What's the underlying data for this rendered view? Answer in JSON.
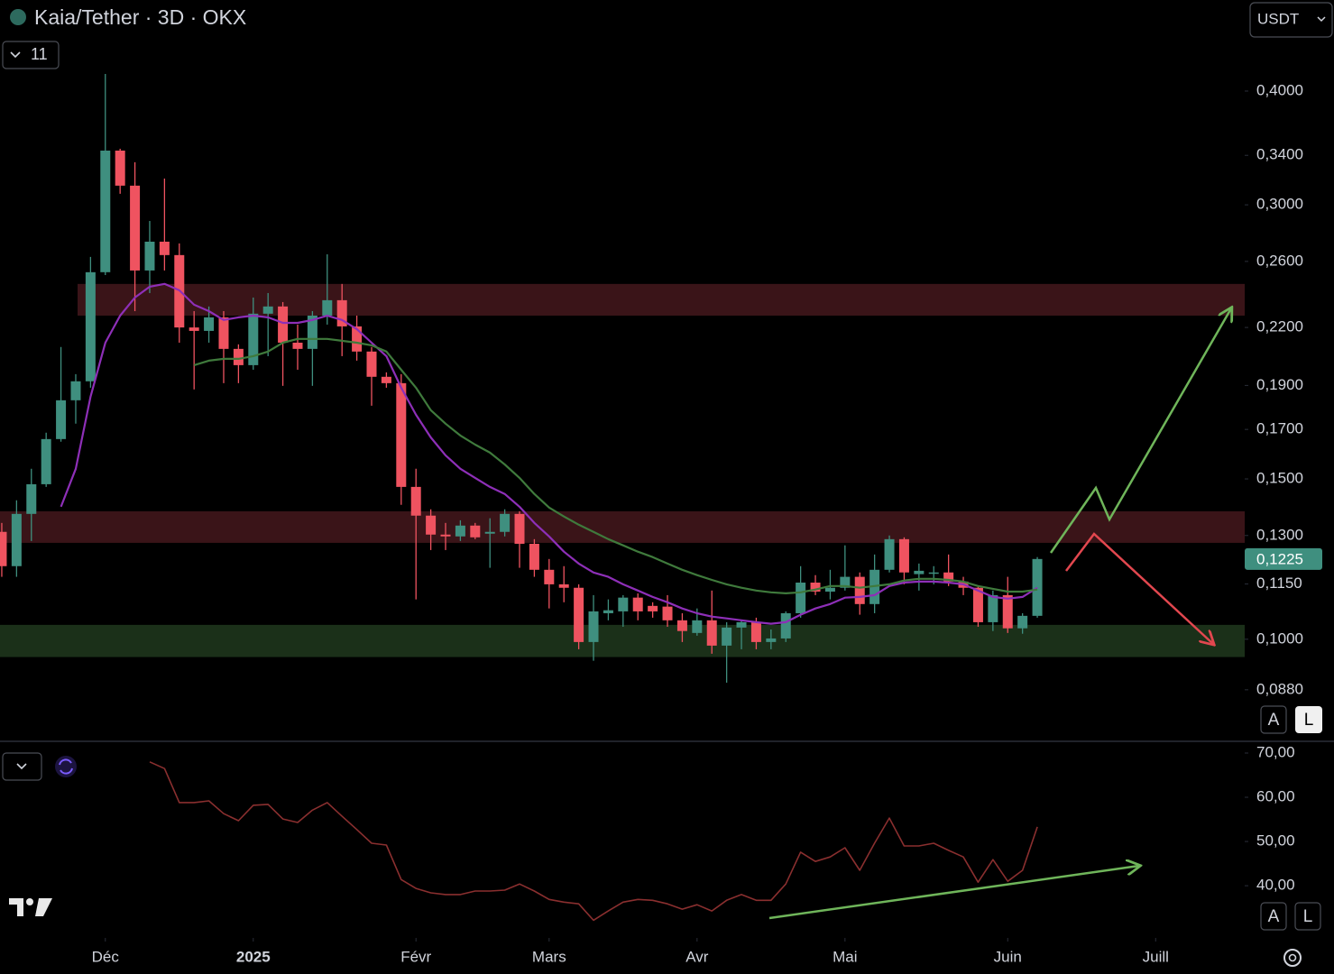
{
  "toolbar": {
    "currency": "USDT",
    "indicators": "11",
    "scale_buttons": [
      "A",
      "L"
    ]
  },
  "chart_data": [
    {
      "type": "candlestick",
      "title": "Kaia/Tether · 3D · OKX",
      "log_scale": true,
      "grid": false,
      "up_color": "#3f8f7f",
      "down_color": "#ef5360",
      "xlim": [
        -0.12,
        84.02
      ],
      "ylim": [
        0.0776,
        0.5036
      ],
      "yticks": [
        {
          "value": 0.4,
          "label": "0,4000"
        },
        {
          "value": 0.34,
          "label": "0,3400"
        },
        {
          "value": 0.3,
          "label": "0,3000"
        },
        {
          "value": 0.26,
          "label": "0,2600"
        },
        {
          "value": 0.22,
          "label": "0,2200"
        },
        {
          "value": 0.19,
          "label": "0,1900"
        },
        {
          "value": 0.17,
          "label": "0,1700"
        },
        {
          "value": 0.15,
          "label": "0,1500"
        },
        {
          "value": 0.13,
          "label": "0,1300"
        },
        {
          "value": 0.115,
          "label": "0,1150"
        },
        {
          "value": 0.1,
          "label": "0,1000"
        },
        {
          "value": 0.088,
          "label": "0,0880"
        }
      ],
      "last_price": {
        "value": 0.1225,
        "label": "0,1225"
      },
      "open": [
        0.1312,
        0.1203,
        0.1373,
        0.148,
        0.1659,
        0.183,
        0.192,
        0.253,
        0.3441,
        0.3149,
        0.2541,
        0.2733,
        0.2642,
        0.22,
        0.2181,
        0.2257,
        0.2084,
        0.2,
        0.2278,
        0.232,
        0.2117,
        0.2084,
        0.2267,
        0.2357,
        0.2206,
        0.207,
        0.1942,
        0.1911,
        0.147,
        0.1367,
        0.1303,
        0.1297,
        0.1333,
        0.1306,
        0.1312,
        0.1373,
        0.1273,
        0.1192,
        0.1149,
        0.1139,
        0.0993,
        0.1068,
        0.1073,
        0.1111,
        0.1088,
        0.1086,
        0.1049,
        0.1016,
        0.1049,
        0.0984,
        0.103,
        0.1044,
        0.0993,
        0.1002,
        0.1068,
        0.1154,
        0.1128,
        0.1139,
        0.1171,
        0.1093,
        0.1192,
        0.1288,
        0.1179,
        0.1181,
        0.1184,
        0.1157,
        0.1139,
        0.1044,
        0.1118,
        0.1028,
        0.1061
      ],
      "high": [
        0.1342,
        0.1421,
        0.1539,
        0.1686,
        0.2094,
        0.1955,
        0.263,
        0.4177,
        0.3457,
        0.3341,
        0.288,
        0.3206,
        0.2721,
        0.2293,
        0.232,
        0.2293,
        0.2108,
        0.2373,
        0.24,
        0.2346,
        0.2216,
        0.2293,
        0.2647,
        0.2456,
        0.2267,
        0.2094,
        0.1964,
        0.1955,
        0.1539,
        0.1389,
        0.1342,
        0.1351,
        0.1342,
        0.1358,
        0.1389,
        0.1382,
        0.1288,
        0.1225,
        0.1203,
        0.1149,
        0.1118,
        0.1106,
        0.1118,
        0.1123,
        0.1098,
        0.1118,
        0.1068,
        0.1081,
        0.1131,
        0.1044,
        0.1049,
        0.1056,
        0.1025,
        0.1073,
        0.1203,
        0.1176,
        0.1192,
        0.1268,
        0.1184,
        0.1239,
        0.13,
        0.1294,
        0.1211,
        0.1203,
        0.1239,
        0.1171,
        0.1144,
        0.1131,
        0.1171,
        0.1068,
        0.1231
      ],
      "low": [
        0.1171,
        0.1171,
        0.1282,
        0.147,
        0.1648,
        0.1725,
        0.1889,
        0.2512,
        0.3085,
        0.2293,
        0.24,
        0.2541,
        0.2117,
        0.1881,
        0.2117,
        0.1911,
        0.1911,
        0.1977,
        0.2046,
        0.1898,
        0.1977,
        0.1898,
        0.2216,
        0.2046,
        0.2023,
        0.1805,
        0.1889,
        0.1405,
        0.1106,
        0.1253,
        0.1253,
        0.1282,
        0.1288,
        0.1198,
        0.1297,
        0.1198,
        0.1171,
        0.1081,
        0.1098,
        0.0975,
        0.0947,
        0.1049,
        0.1032,
        0.1049,
        0.1056,
        0.1032,
        0.0993,
        0.1009,
        0.0964,
        0.0896,
        0.0975,
        0.0975,
        0.0975,
        0.0993,
        0.1056,
        0.1118,
        0.1106,
        0.1131,
        0.1064,
        0.1068,
        0.1184,
        0.1149,
        0.1131,
        0.1149,
        0.1144,
        0.1118,
        0.1032,
        0.1021,
        0.1016,
        0.1014,
        0.1056
      ],
      "close": [
        0.1203,
        0.1373,
        0.148,
        0.1659,
        0.183,
        0.192,
        0.253,
        0.3441,
        0.3149,
        0.2541,
        0.2733,
        0.2642,
        0.22,
        0.2181,
        0.2257,
        0.2084,
        0.2,
        0.2278,
        0.232,
        0.2117,
        0.2084,
        0.2267,
        0.2357,
        0.2206,
        0.207,
        0.1942,
        0.1911,
        0.147,
        0.1367,
        0.1303,
        0.1297,
        0.1333,
        0.1294,
        0.1312,
        0.1373,
        0.1273,
        0.1192,
        0.1149,
        0.1139,
        0.0993,
        0.1073,
        0.1076,
        0.1111,
        0.1073,
        0.1073,
        0.1049,
        0.1021,
        0.1049,
        0.0984,
        0.103,
        0.1044,
        0.0993,
        0.1002,
        0.1068,
        0.1154,
        0.1128,
        0.1139,
        0.1171,
        0.1093,
        0.1192,
        0.1288,
        0.1184,
        0.1189,
        0.1184,
        0.1157,
        0.1139,
        0.1044,
        0.1118,
        0.1028,
        0.1061,
        0.1225
      ],
      "lines": [
        {
          "color": "#8e2fb8",
          "values": [
            null,
            null,
            null,
            null,
            0.1398,
            0.1539,
            0.1847,
            0.2117,
            0.2267,
            0.2373,
            0.2439,
            0.2456,
            0.2417,
            0.233,
            0.2293,
            0.2242,
            0.2257,
            0.2267,
            0.2257,
            0.2226,
            0.2226,
            0.2242,
            0.2267,
            0.2242,
            0.2191,
            0.2117,
            0.2046,
            0.1889,
            0.1764,
            0.1666,
            0.1592,
            0.1539,
            0.1504,
            0.147,
            0.1444,
            0.1398,
            0.1342,
            0.1297,
            0.1248,
            0.1211,
            0.1184,
            0.1171,
            0.1149,
            0.1131,
            0.1113,
            0.1098,
            0.1081,
            0.1068,
            0.1059,
            0.1054,
            0.1049,
            0.1044,
            0.104,
            0.1044,
            0.1064,
            0.1081,
            0.1093,
            0.1111,
            0.1113,
            0.1118,
            0.1144,
            0.1154,
            0.1157,
            0.1157,
            0.1154,
            0.1149,
            0.1131,
            0.1113,
            0.1108,
            0.1113,
            0.1139
          ]
        },
        {
          "color": "#3f7a3c",
          "values": [
            null,
            null,
            null,
            null,
            null,
            null,
            null,
            null,
            null,
            null,
            null,
            null,
            null,
            0.2,
            0.2023,
            0.2032,
            0.2032,
            0.2046,
            0.207,
            0.2117,
            0.2137,
            0.2137,
            0.2137,
            0.2127,
            0.2117,
            0.2103,
            0.207,
            0.1977,
            0.1889,
            0.1785,
            0.1725,
            0.1674,
            0.1636,
            0.1603,
            0.1556,
            0.1504,
            0.1444,
            0.1395,
            0.1364,
            0.1336,
            0.1312,
            0.1288,
            0.1268,
            0.1248,
            0.1231,
            0.1211,
            0.1192,
            0.1176,
            0.1162,
            0.1149,
            0.1139,
            0.1131,
            0.1126,
            0.1123,
            0.1126,
            0.1134,
            0.1144,
            0.1144,
            0.1139,
            0.1144,
            0.1149,
            0.116,
            0.1165,
            0.1165,
            0.1162,
            0.1157,
            0.1144,
            0.1136,
            0.1128,
            0.1128,
            0.1134
          ]
        }
      ],
      "zones": [
        {
          "low": 0.2267,
          "high": 0.2456,
          "color": "#3a1418"
        },
        {
          "low": 0.1276,
          "high": 0.1382,
          "color": "#3a1418"
        },
        {
          "low": 0.0956,
          "high": 0.1037,
          "color": "#1b3019"
        }
      ]
    },
    {
      "type": "line",
      "color": "#8a2f2f",
      "grid": false,
      "xlim": [
        -0.12,
        84.02
      ],
      "xticks": [
        {
          "value": 7,
          "label": "Déc"
        },
        {
          "value": 17,
          "label": "2025"
        },
        {
          "value": 28,
          "label": "Févr"
        },
        {
          "value": 37,
          "label": "Mars"
        },
        {
          "value": 47,
          "label": "Avr"
        },
        {
          "value": 57,
          "label": "Mai"
        },
        {
          "value": 68,
          "label": "Juin"
        },
        {
          "value": 78,
          "label": "Juill"
        }
      ],
      "ylim": [
        28.2,
        72.65
      ],
      "yticks": [
        {
          "value": 70,
          "label": "70,00"
        },
        {
          "value": 60,
          "label": "60,00"
        },
        {
          "value": 50,
          "label": "50,00"
        },
        {
          "value": 40,
          "label": "40,00"
        }
      ],
      "values": [
        null,
        null,
        null,
        null,
        null,
        null,
        null,
        null,
        null,
        null,
        68.0,
        66.5,
        58.8,
        58.8,
        59.2,
        56.3,
        54.7,
        58.2,
        58.4,
        55.1,
        54.3,
        57.1,
        58.8,
        55.7,
        52.7,
        49.6,
        49.2,
        41.4,
        39.4,
        38.4,
        38.0,
        38.0,
        38.8,
        38.8,
        39.0,
        40.4,
        38.8,
        36.9,
        36.3,
        35.9,
        32.2,
        34.3,
        36.3,
        36.9,
        36.7,
        35.9,
        34.7,
        35.7,
        34.3,
        36.7,
        38.0,
        36.7,
        36.7,
        40.4,
        47.6,
        45.5,
        46.5,
        48.6,
        43.5,
        49.6,
        55.3,
        49.0,
        49.0,
        49.6,
        48.0,
        46.5,
        40.8,
        45.9,
        41.0,
        43.5,
        53.3
      ]
    }
  ]
}
